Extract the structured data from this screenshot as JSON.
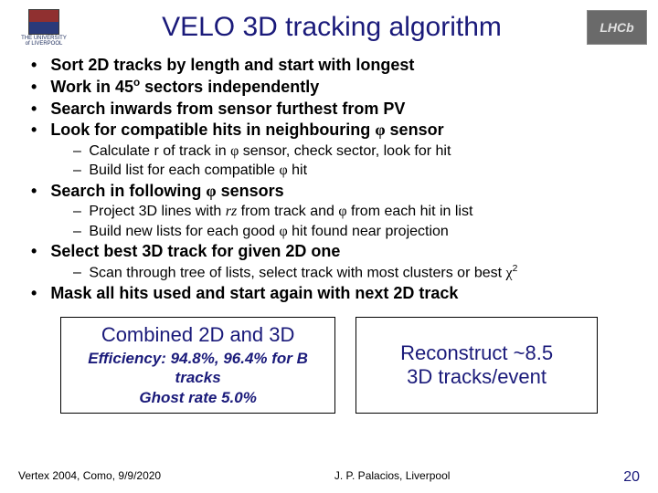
{
  "header": {
    "institution_line1": "THE UNIVERSITY",
    "institution_line2": "of LIVERPOOL",
    "title": "VELO 3D tracking algorithm",
    "logo_right_text": "LHCb"
  },
  "bullets": {
    "b1": "Sort 2D tracks by length and start with longest",
    "b2_a": "Work in 45",
    "b2_sup": "o",
    "b2_b": " sectors independently",
    "b3": "Search inwards from sensor furthest from PV",
    "b4_a": "Look for compatible hits in neighbouring ",
    "b4_b": " sensor",
    "s4_1_a": "Calculate r of track in ",
    "s4_1_b": " sensor, check sector, look for hit",
    "s4_2_a": "Build list for each compatible ",
    "s4_2_b": " hit",
    "b5_a": "Search in following ",
    "b5_b": " sensors",
    "s5_1_a": "Project 3D lines with ",
    "s5_1_rz": "rz",
    "s5_1_b": " from track and ",
    "s5_1_c": " from each hit in list",
    "s5_2_a": "Build new lists for each good ",
    "s5_2_b": " hit found near projection",
    "b6": "Select best 3D track for given 2D one",
    "s6_1_a": "Scan through tree of lists, select track with most clusters or best ",
    "s6_1_sup": "2",
    "b7": "Mask all hits used and start again with next 2D track"
  },
  "boxes": {
    "left_title": "Combined 2D and 3D",
    "left_line1": "Efficiency: 94.8%, 96.4% for B tracks",
    "left_line2": "Ghost rate 5.0%",
    "right_line1": "Reconstruct ~8.5",
    "right_line2": "3D tracks/event"
  },
  "footer": {
    "left": "Vertex 2004, Como, 9/9/2020",
    "center": "J. P. Palacios, Liverpool",
    "page": "20"
  },
  "colors": {
    "title": "#1a1a7a",
    "text": "#000000",
    "box_text": "#1a1a7a",
    "bg": "#ffffff"
  }
}
